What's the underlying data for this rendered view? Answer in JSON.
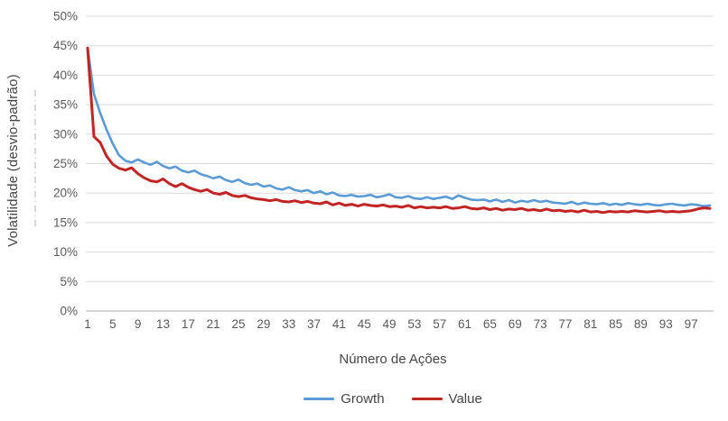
{
  "chart_data": {
    "type": "line",
    "title": "",
    "x_axis_title": "Número de Ações",
    "y_axis_title": "Volatilidade (desvio-padrão)",
    "ylim": [
      0,
      50
    ],
    "y_ticks": [
      0,
      5,
      10,
      15,
      20,
      25,
      30,
      35,
      40,
      45,
      50
    ],
    "y_tick_suffix": "%",
    "x_range": [
      1,
      100
    ],
    "x_step": 1,
    "x_tick_labels": [
      1,
      5,
      9,
      13,
      17,
      21,
      25,
      29,
      33,
      37,
      41,
      45,
      49,
      53,
      57,
      61,
      65,
      69,
      73,
      77,
      81,
      85,
      89,
      93,
      97
    ],
    "grid": true,
    "legend_position": "bottom",
    "colors": {
      "grid": "#D9D9D9",
      "axis": "#BFBFBF",
      "tick_labels": "#595959",
      "titles": "#454545"
    },
    "series": [
      {
        "name": "Growth",
        "color": "#5B9BD5",
        "stroke_width": 2.6,
        "values": [
          44.6,
          36.8,
          33.6,
          30.8,
          28.4,
          26.4,
          25.5,
          25.2,
          25.7,
          25.2,
          24.8,
          25.3,
          24.6,
          24.2,
          24.5,
          23.8,
          23.5,
          23.8,
          23.2,
          22.9,
          22.5,
          22.8,
          22.2,
          21.9,
          22.3,
          21.7,
          21.4,
          21.6,
          21.1,
          21.3,
          20.8,
          20.6,
          21.0,
          20.5,
          20.3,
          20.5,
          20.0,
          20.3,
          19.8,
          20.1,
          19.6,
          19.5,
          19.7,
          19.4,
          19.5,
          19.7,
          19.3,
          19.5,
          19.8,
          19.3,
          19.2,
          19.5,
          19.1,
          19.0,
          19.3,
          19.0,
          19.2,
          19.4,
          19.0,
          19.6,
          19.2,
          18.9,
          18.8,
          18.9,
          18.6,
          18.9,
          18.5,
          18.8,
          18.4,
          18.7,
          18.5,
          18.8,
          18.5,
          18.7,
          18.4,
          18.3,
          18.2,
          18.5,
          18.1,
          18.4,
          18.2,
          18.1,
          18.3,
          18.0,
          18.2,
          18.0,
          18.3,
          18.1,
          18.0,
          18.2,
          18.0,
          17.9,
          18.1,
          18.2,
          18.0,
          17.9,
          18.1,
          18.0,
          17.8,
          17.9
        ]
      },
      {
        "name": "Value",
        "color": "#C02423",
        "stroke_width": 3,
        "values": [
          44.6,
          29.6,
          28.6,
          26.3,
          24.9,
          24.2,
          23.9,
          24.3,
          23.3,
          22.6,
          22.1,
          21.9,
          22.4,
          21.6,
          21.1,
          21.6,
          21.0,
          20.6,
          20.3,
          20.6,
          20.0,
          19.8,
          20.1,
          19.6,
          19.4,
          19.6,
          19.2,
          19.0,
          18.9,
          18.7,
          18.9,
          18.6,
          18.5,
          18.7,
          18.4,
          18.6,
          18.3,
          18.2,
          18.5,
          18.0,
          18.3,
          17.9,
          18.1,
          17.8,
          18.1,
          17.9,
          17.8,
          18.0,
          17.7,
          17.8,
          17.6,
          17.9,
          17.5,
          17.7,
          17.5,
          17.6,
          17.5,
          17.7,
          17.4,
          17.5,
          17.7,
          17.4,
          17.3,
          17.5,
          17.2,
          17.4,
          17.1,
          17.3,
          17.2,
          17.4,
          17.1,
          17.2,
          17.0,
          17.3,
          17.0,
          17.1,
          16.9,
          17.0,
          16.8,
          17.1,
          16.8,
          16.9,
          16.7,
          16.9,
          16.8,
          16.9,
          16.8,
          17.0,
          16.9,
          16.8,
          16.9,
          17.0,
          16.8,
          16.9,
          16.8,
          16.9,
          17.0,
          17.3,
          17.5,
          17.4
        ]
      }
    ]
  },
  "legend": {
    "items": [
      {
        "label": "Growth",
        "color": "#5B9BD5"
      },
      {
        "label": "Value",
        "color": "#C02423"
      }
    ]
  }
}
